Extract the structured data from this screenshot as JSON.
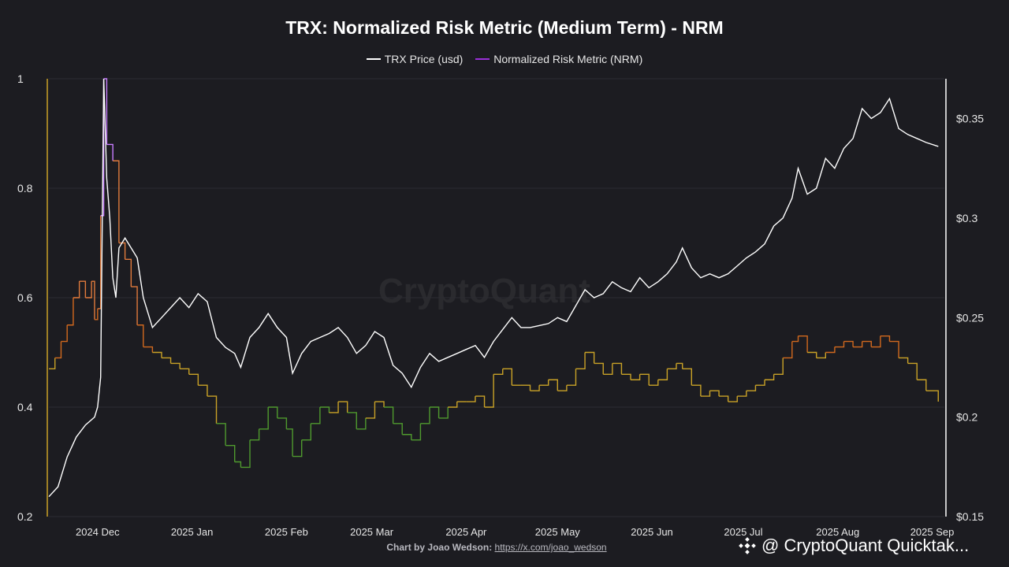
{
  "chart_data": {
    "type": "line",
    "title": "TRX: Normalized Risk Metric (Medium Term) - NRM",
    "legend": [
      {
        "label": "TRX Price (usd)",
        "color": "#ffffff"
      },
      {
        "label": "Normalized Risk Metric (NRM)",
        "color": "#9b30d9"
      }
    ],
    "legend_placement": "top-center",
    "grid": true,
    "x_ticks": [
      "2024 Dec",
      "2025 Jan",
      "2025 Feb",
      "2025 Mar",
      "2025 Apr",
      "2025 May",
      "2025 Jun",
      "2025 Jul",
      "2025 Aug",
      "2025 Sep"
    ],
    "y_left": {
      "ticks": [
        "0.2",
        "0.4",
        "0.6",
        "0.8",
        "1"
      ],
      "range": [
        0.2,
        1.0
      ]
    },
    "y_right": {
      "ticks": [
        "$0.15",
        "$0.2",
        "$0.25",
        "$0.3",
        "$0.35"
      ],
      "range": [
        0.15,
        0.37
      ]
    },
    "x_range": [
      "2024-11-15",
      "2025-09-05"
    ],
    "nrm_color_bands": [
      {
        "max": 0.4,
        "color": "#4f9a2e"
      },
      {
        "max": 0.5,
        "color": "#c9a227"
      },
      {
        "max": 0.6,
        "color": "#d2691e"
      },
      {
        "max": 0.85,
        "color": "#e07a3c"
      },
      {
        "max": 1.0,
        "color": "#c77dff"
      }
    ],
    "series": [
      {
        "name": "TRX Price (usd)",
        "values": [
          [
            "2024-11-15",
            0.16
          ],
          [
            "2024-11-18",
            0.165
          ],
          [
            "2024-11-21",
            0.18
          ],
          [
            "2024-11-24",
            0.19
          ],
          [
            "2024-11-27",
            0.196
          ],
          [
            "2024-11-30",
            0.2
          ],
          [
            "2024-12-01",
            0.205
          ],
          [
            "2024-12-02",
            0.22
          ],
          [
            "2024-12-03",
            0.37
          ],
          [
            "2024-12-04",
            0.32
          ],
          [
            "2024-12-05",
            0.3
          ],
          [
            "2024-12-06",
            0.27
          ],
          [
            "2024-12-07",
            0.26
          ],
          [
            "2024-12-08",
            0.285
          ],
          [
            "2024-12-10",
            0.29
          ],
          [
            "2024-12-12",
            0.285
          ],
          [
            "2024-12-14",
            0.28
          ],
          [
            "2024-12-16",
            0.26
          ],
          [
            "2024-12-19",
            0.245
          ],
          [
            "2024-12-22",
            0.25
          ],
          [
            "2024-12-25",
            0.255
          ],
          [
            "2024-12-28",
            0.26
          ],
          [
            "2024-12-31",
            0.255
          ],
          [
            "2025-01-03",
            0.262
          ],
          [
            "2025-01-06",
            0.258
          ],
          [
            "2025-01-09",
            0.24
          ],
          [
            "2025-01-12",
            0.235
          ],
          [
            "2025-01-15",
            0.232
          ],
          [
            "2025-01-17",
            0.225
          ],
          [
            "2025-01-20",
            0.24
          ],
          [
            "2025-01-23",
            0.245
          ],
          [
            "2025-01-26",
            0.252
          ],
          [
            "2025-01-29",
            0.245
          ],
          [
            "2025-02-01",
            0.24
          ],
          [
            "2025-02-03",
            0.222
          ],
          [
            "2025-02-06",
            0.232
          ],
          [
            "2025-02-09",
            0.238
          ],
          [
            "2025-02-12",
            0.24
          ],
          [
            "2025-02-15",
            0.242
          ],
          [
            "2025-02-18",
            0.245
          ],
          [
            "2025-02-21",
            0.24
          ],
          [
            "2025-02-24",
            0.232
          ],
          [
            "2025-02-27",
            0.236
          ],
          [
            "2025-03-02",
            0.243
          ],
          [
            "2025-03-05",
            0.24
          ],
          [
            "2025-03-08",
            0.226
          ],
          [
            "2025-03-11",
            0.222
          ],
          [
            "2025-03-14",
            0.215
          ],
          [
            "2025-03-17",
            0.225
          ],
          [
            "2025-03-20",
            0.232
          ],
          [
            "2025-03-23",
            0.228
          ],
          [
            "2025-03-26",
            0.23
          ],
          [
            "2025-03-29",
            0.232
          ],
          [
            "2025-04-01",
            0.234
          ],
          [
            "2025-04-04",
            0.236
          ],
          [
            "2025-04-07",
            0.23
          ],
          [
            "2025-04-10",
            0.238
          ],
          [
            "2025-04-13",
            0.244
          ],
          [
            "2025-04-16",
            0.25
          ],
          [
            "2025-04-19",
            0.245
          ],
          [
            "2025-04-22",
            0.245
          ],
          [
            "2025-04-25",
            0.246
          ],
          [
            "2025-04-28",
            0.247
          ],
          [
            "2025-05-01",
            0.25
          ],
          [
            "2025-05-04",
            0.248
          ],
          [
            "2025-05-07",
            0.256
          ],
          [
            "2025-05-10",
            0.264
          ],
          [
            "2025-05-13",
            0.26
          ],
          [
            "2025-05-16",
            0.262
          ],
          [
            "2025-05-19",
            0.268
          ],
          [
            "2025-05-22",
            0.265
          ],
          [
            "2025-05-25",
            0.263
          ],
          [
            "2025-05-28",
            0.27
          ],
          [
            "2025-05-31",
            0.265
          ],
          [
            "2025-06-03",
            0.268
          ],
          [
            "2025-06-06",
            0.272
          ],
          [
            "2025-06-09",
            0.278
          ],
          [
            "2025-06-11",
            0.285
          ],
          [
            "2025-06-14",
            0.275
          ],
          [
            "2025-06-17",
            0.27
          ],
          [
            "2025-06-20",
            0.272
          ],
          [
            "2025-06-23",
            0.27
          ],
          [
            "2025-06-26",
            0.272
          ],
          [
            "2025-06-29",
            0.276
          ],
          [
            "2025-07-02",
            0.28
          ],
          [
            "2025-07-05",
            0.283
          ],
          [
            "2025-07-08",
            0.287
          ],
          [
            "2025-07-11",
            0.296
          ],
          [
            "2025-07-14",
            0.3
          ],
          [
            "2025-07-17",
            0.31
          ],
          [
            "2025-07-19",
            0.325
          ],
          [
            "2025-07-22",
            0.312
          ],
          [
            "2025-07-25",
            0.315
          ],
          [
            "2025-07-28",
            0.33
          ],
          [
            "2025-07-31",
            0.325
          ],
          [
            "2025-08-03",
            0.335
          ],
          [
            "2025-08-06",
            0.34
          ],
          [
            "2025-08-09",
            0.355
          ],
          [
            "2025-08-12",
            0.35
          ],
          [
            "2025-08-15",
            0.353
          ],
          [
            "2025-08-18",
            0.36
          ],
          [
            "2025-08-21",
            0.345
          ],
          [
            "2025-08-24",
            0.342
          ],
          [
            "2025-08-27",
            0.34
          ],
          [
            "2025-08-30",
            0.338
          ],
          [
            "2025-09-03",
            0.336
          ]
        ]
      },
      {
        "name": "Normalized Risk Metric (NRM)",
        "values": [
          [
            "2024-11-15",
            0.47
          ],
          [
            "2024-11-17",
            0.49
          ],
          [
            "2024-11-19",
            0.52
          ],
          [
            "2024-11-21",
            0.55
          ],
          [
            "2024-11-23",
            0.6
          ],
          [
            "2024-11-25",
            0.63
          ],
          [
            "2024-11-27",
            0.6
          ],
          [
            "2024-11-29",
            0.63
          ],
          [
            "2024-11-30",
            0.56
          ],
          [
            "2024-12-01",
            0.58
          ],
          [
            "2024-12-02",
            0.75
          ],
          [
            "2024-12-03",
            1.0
          ],
          [
            "2024-12-04",
            0.88
          ],
          [
            "2024-12-06",
            0.85
          ],
          [
            "2024-12-08",
            0.7
          ],
          [
            "2024-12-10",
            0.67
          ],
          [
            "2024-12-12",
            0.62
          ],
          [
            "2024-12-14",
            0.55
          ],
          [
            "2024-12-16",
            0.51
          ],
          [
            "2024-12-19",
            0.5
          ],
          [
            "2024-12-22",
            0.49
          ],
          [
            "2024-12-25",
            0.48
          ],
          [
            "2024-12-28",
            0.47
          ],
          [
            "2024-12-31",
            0.46
          ],
          [
            "2025-01-03",
            0.44
          ],
          [
            "2025-01-06",
            0.42
          ],
          [
            "2025-01-09",
            0.37
          ],
          [
            "2025-01-12",
            0.33
          ],
          [
            "2025-01-15",
            0.3
          ],
          [
            "2025-01-17",
            0.29
          ],
          [
            "2025-01-20",
            0.34
          ],
          [
            "2025-01-23",
            0.36
          ],
          [
            "2025-01-26",
            0.4
          ],
          [
            "2025-01-29",
            0.38
          ],
          [
            "2025-02-01",
            0.36
          ],
          [
            "2025-02-03",
            0.31
          ],
          [
            "2025-02-06",
            0.34
          ],
          [
            "2025-02-09",
            0.37
          ],
          [
            "2025-02-12",
            0.4
          ],
          [
            "2025-02-15",
            0.39
          ],
          [
            "2025-02-18",
            0.41
          ],
          [
            "2025-02-21",
            0.39
          ],
          [
            "2025-02-24",
            0.36
          ],
          [
            "2025-02-27",
            0.38
          ],
          [
            "2025-03-02",
            0.41
          ],
          [
            "2025-03-05",
            0.4
          ],
          [
            "2025-03-08",
            0.37
          ],
          [
            "2025-03-11",
            0.35
          ],
          [
            "2025-03-14",
            0.34
          ],
          [
            "2025-03-17",
            0.37
          ],
          [
            "2025-03-20",
            0.4
          ],
          [
            "2025-03-23",
            0.38
          ],
          [
            "2025-03-26",
            0.4
          ],
          [
            "2025-03-29",
            0.41
          ],
          [
            "2025-04-01",
            0.41
          ],
          [
            "2025-04-04",
            0.42
          ],
          [
            "2025-04-07",
            0.4
          ],
          [
            "2025-04-10",
            0.46
          ],
          [
            "2025-04-13",
            0.47
          ],
          [
            "2025-04-16",
            0.44
          ],
          [
            "2025-04-19",
            0.44
          ],
          [
            "2025-04-22",
            0.43
          ],
          [
            "2025-04-25",
            0.44
          ],
          [
            "2025-04-28",
            0.45
          ],
          [
            "2025-05-01",
            0.43
          ],
          [
            "2025-05-04",
            0.44
          ],
          [
            "2025-05-07",
            0.47
          ],
          [
            "2025-05-10",
            0.5
          ],
          [
            "2025-05-13",
            0.48
          ],
          [
            "2025-05-16",
            0.46
          ],
          [
            "2025-05-19",
            0.48
          ],
          [
            "2025-05-22",
            0.46
          ],
          [
            "2025-05-25",
            0.45
          ],
          [
            "2025-05-28",
            0.46
          ],
          [
            "2025-05-31",
            0.44
          ],
          [
            "2025-06-03",
            0.45
          ],
          [
            "2025-06-06",
            0.47
          ],
          [
            "2025-06-09",
            0.48
          ],
          [
            "2025-06-11",
            0.47
          ],
          [
            "2025-06-14",
            0.44
          ],
          [
            "2025-06-17",
            0.42
          ],
          [
            "2025-06-20",
            0.43
          ],
          [
            "2025-06-23",
            0.42
          ],
          [
            "2025-06-26",
            0.41
          ],
          [
            "2025-06-29",
            0.42
          ],
          [
            "2025-07-02",
            0.43
          ],
          [
            "2025-07-05",
            0.44
          ],
          [
            "2025-07-08",
            0.45
          ],
          [
            "2025-07-11",
            0.46
          ],
          [
            "2025-07-14",
            0.49
          ],
          [
            "2025-07-17",
            0.52
          ],
          [
            "2025-07-19",
            0.53
          ],
          [
            "2025-07-22",
            0.5
          ],
          [
            "2025-07-25",
            0.49
          ],
          [
            "2025-07-28",
            0.5
          ],
          [
            "2025-07-31",
            0.51
          ],
          [
            "2025-08-03",
            0.52
          ],
          [
            "2025-08-06",
            0.51
          ],
          [
            "2025-08-09",
            0.52
          ],
          [
            "2025-08-12",
            0.51
          ],
          [
            "2025-08-15",
            0.53
          ],
          [
            "2025-08-18",
            0.52
          ],
          [
            "2025-08-21",
            0.49
          ],
          [
            "2025-08-24",
            0.48
          ],
          [
            "2025-08-27",
            0.45
          ],
          [
            "2025-08-30",
            0.43
          ],
          [
            "2025-09-03",
            0.41
          ]
        ]
      }
    ]
  },
  "footer": {
    "credit_label": "Chart by Joao Wedson:",
    "credit_link": "https://x.com/joao_wedson",
    "badge_text": "@ CryptoQuant Quicktak..."
  },
  "watermark": "CryptoQuant",
  "colors": {
    "background": "#1c1c21",
    "left_axis": "#c9a227",
    "right_axis": "#ffffff",
    "grid": "#2c2c33"
  }
}
